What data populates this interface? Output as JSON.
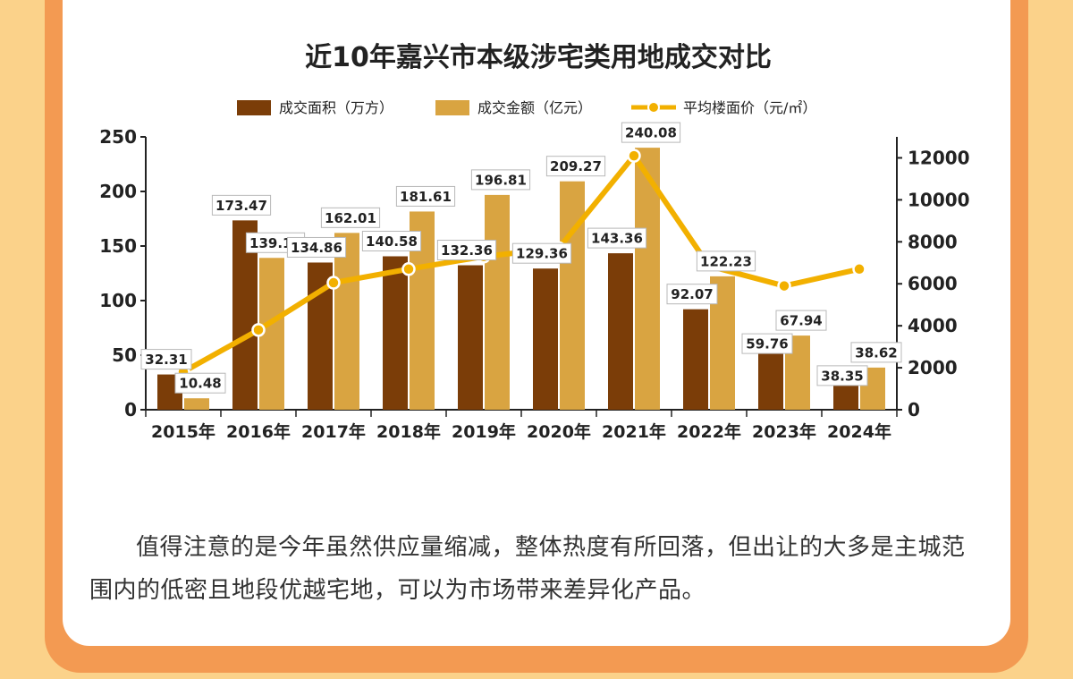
{
  "chart_data": {
    "type": "bar",
    "title": "近10年嘉兴市本级涉宅类用地成交对比",
    "categories": [
      "2015年",
      "2016年",
      "2017年",
      "2018年",
      "2019年",
      "2020年",
      "2021年",
      "2022年",
      "2023年",
      "2024年"
    ],
    "series": [
      {
        "name": "成交面积（万方）",
        "type": "bar",
        "axis": "left",
        "color": "#7b3d08",
        "values": [
          32.31,
          173.47,
          134.86,
          140.58,
          132.36,
          129.36,
          143.36,
          92.07,
          59.76,
          38.35
        ]
      },
      {
        "name": "成交金额（亿元）",
        "type": "bar",
        "axis": "left",
        "color": "#d9a441",
        "values": [
          10.48,
          139.12,
          162.01,
          181.61,
          196.81,
          209.27,
          240.08,
          122.23,
          67.94,
          38.62
        ]
      },
      {
        "name": "平均楼面价（元/㎡）",
        "type": "line",
        "axis": "right",
        "color": "#f2b000",
        "values": [
          1800,
          3800,
          6050,
          6700,
          7300,
          7700,
          12100,
          6850,
          5900,
          6700
        ]
      }
    ],
    "left_axis": {
      "ylim": [
        0,
        250
      ],
      "ticks": [
        "0",
        "50",
        "100",
        "150",
        "200",
        "250"
      ]
    },
    "right_axis": {
      "ylim": [
        0,
        13000
      ],
      "ticks": [
        "0",
        "2000",
        "4000",
        "6000",
        "8000",
        "10000",
        "12000"
      ]
    },
    "legend_position": "top",
    "grid": false
  },
  "text": {
    "paragraph": "值得注意的是今年虽然供应量缩减，整体热度有所回落，但出让的大多是主城范围内的低密且地段优越宅地，可以为市场带来差异化产品。"
  }
}
